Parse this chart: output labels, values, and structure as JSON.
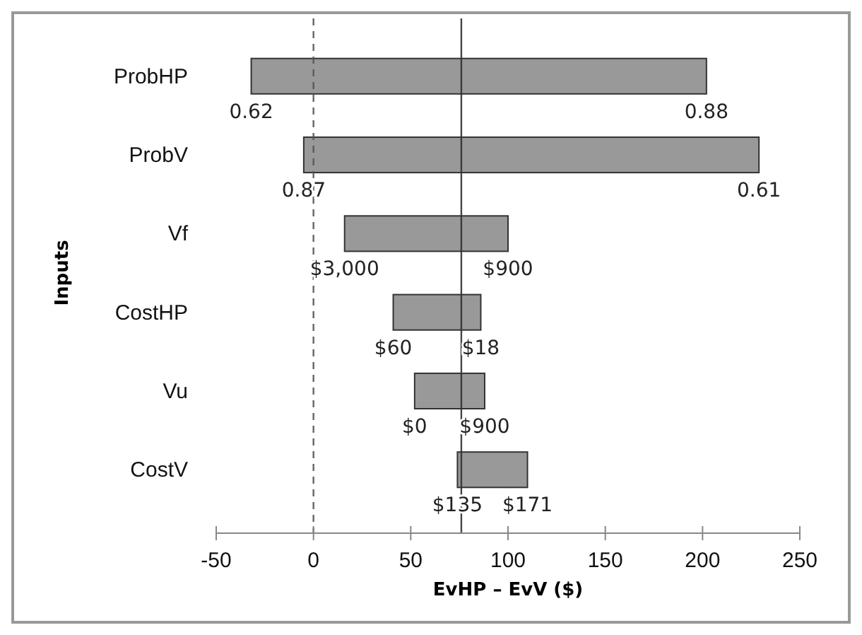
{
  "chart_data": {
    "type": "bar",
    "orientation": "horizontal",
    "xlabel": "EvHP – EvV ($)",
    "ylabel": "Inputs",
    "categories": [
      "ProbHP",
      "ProbV",
      "Vf",
      "CostHP",
      "Vu",
      "CostV"
    ],
    "values": [
      234,
      234,
      84,
      45,
      36,
      36
    ],
    "base": [
      -32,
      -5,
      16,
      41,
      52,
      74
    ],
    "color": "#999999",
    "xlim": [
      -50,
      250
    ],
    "xticks": [
      -50,
      0,
      50,
      100,
      150,
      200,
      250
    ],
    "ref_lines": [
      {
        "axis": "x",
        "value": 0,
        "line_style": "dashed",
        "color": "#555555"
      },
      {
        "axis": "x",
        "value": 76,
        "line_style": "solid",
        "color": "#333333"
      }
    ],
    "annotations": [
      {
        "text": "0.62",
        "x": -32,
        "y": "ProbHP"
      },
      {
        "text": "0.88",
        "x": 202,
        "y": "ProbHP"
      },
      {
        "text": "0.87",
        "x": -5,
        "y": "ProbV"
      },
      {
        "text": "0.61",
        "x": 229,
        "y": "ProbV"
      },
      {
        "text": "$3,000",
        "x": 16,
        "y": "Vf"
      },
      {
        "text": "$900",
        "x": 100,
        "y": "Vf"
      },
      {
        "text": "$60",
        "x": 41,
        "y": "CostHP"
      },
      {
        "text": "$18",
        "x": 86,
        "y": "CostHP"
      },
      {
        "text": "$0",
        "x": 52,
        "y": "Vu"
      },
      {
        "text": "$900",
        "x": 88,
        "y": "Vu"
      },
      {
        "text": "$135",
        "x": 74,
        "y": "CostV"
      },
      {
        "text": "$171",
        "x": 110,
        "y": "CostV"
      }
    ],
    "grid": false
  }
}
